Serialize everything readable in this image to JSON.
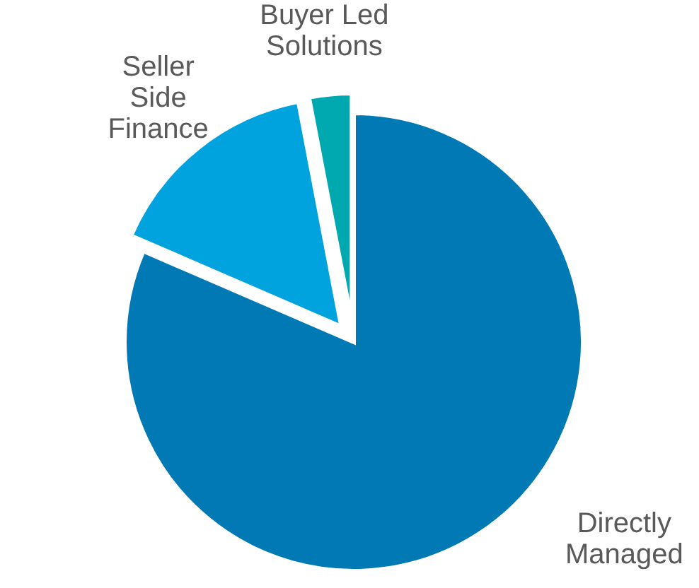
{
  "chart_data": {
    "type": "pie",
    "categories": [
      "Directly Managed",
      "Seller Side Finance",
      "Buyer Led Solutions"
    ],
    "values": [
      81.5,
      15.5,
      3
    ],
    "colors": [
      "#0079b5",
      "#00a3de",
      "#00a9b0"
    ]
  }
}
